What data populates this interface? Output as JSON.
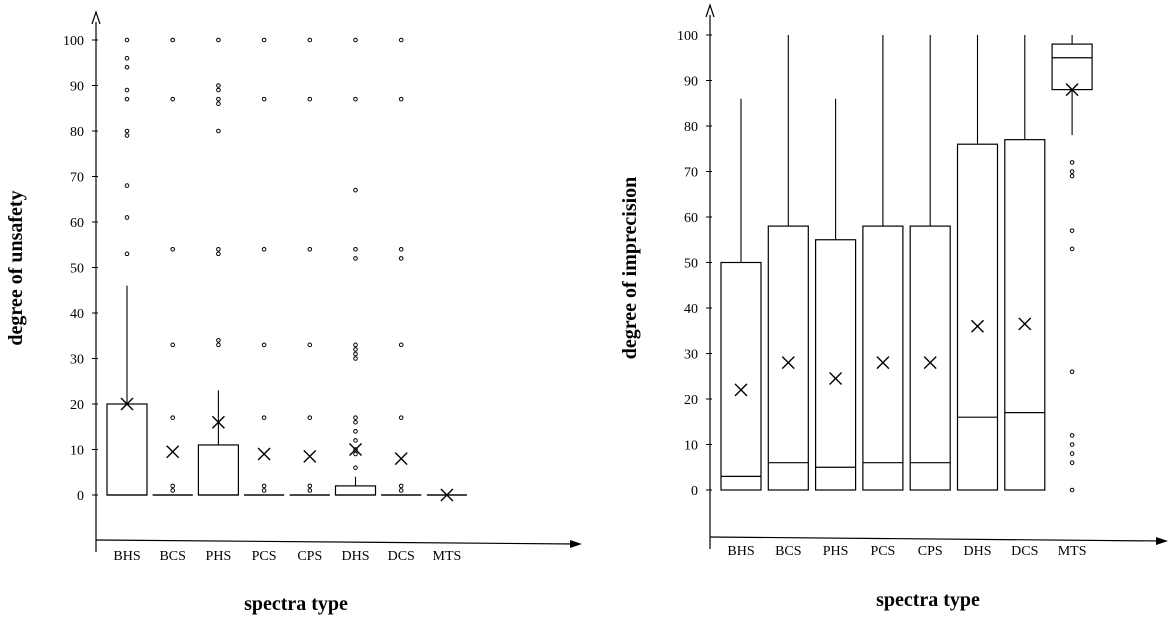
{
  "chart_data": [
    {
      "type": "box",
      "xlabel": "spectra type",
      "ylabel": "degree of unsafety",
      "yticks": [
        0,
        10,
        20,
        30,
        40,
        50,
        60,
        70,
        80,
        90,
        100
      ],
      "categories": [
        "BHS",
        "BCS",
        "PHS",
        "PCS",
        "CPS",
        "DHS",
        "DCS",
        "MTS"
      ],
      "boxes": [
        {
          "category": "BHS",
          "q1": 0,
          "median": 0,
          "q3": 20,
          "whisker_low": 0,
          "whisker_high": 46,
          "mean": 20,
          "outliers": [
            53,
            61,
            68,
            79,
            80,
            87,
            89,
            94,
            96,
            100
          ]
        },
        {
          "category": "BCS",
          "q1": 0,
          "median": 0,
          "q3": 0,
          "whisker_low": 0,
          "whisker_high": 0,
          "mean": 9.5,
          "outliers": [
            1,
            2,
            17,
            33,
            54,
            87,
            100
          ]
        },
        {
          "category": "PHS",
          "q1": 0,
          "median": 0,
          "q3": 11,
          "whisker_low": 0,
          "whisker_high": 23,
          "mean": 16,
          "outliers": [
            33,
            34,
            53,
            54,
            80,
            86,
            87,
            89,
            90,
            100
          ]
        },
        {
          "category": "PCS",
          "q1": 0,
          "median": 0,
          "q3": 0,
          "whisker_low": 0,
          "whisker_high": 0,
          "mean": 9,
          "outliers": [
            1,
            2,
            17,
            33,
            54,
            87,
            100
          ]
        },
        {
          "category": "CPS",
          "q1": 0,
          "median": 0,
          "q3": 0,
          "whisker_low": 0,
          "whisker_high": 0,
          "mean": 8.5,
          "outliers": [
            1,
            2,
            17,
            33,
            54,
            87,
            100
          ]
        },
        {
          "category": "DHS",
          "q1": 0,
          "median": 0,
          "q3": 2,
          "whisker_low": 0,
          "whisker_high": 4,
          "mean": 10,
          "outliers": [
            6,
            9,
            10,
            12,
            14,
            16,
            17,
            30,
            31,
            32,
            33,
            52,
            54,
            67,
            87,
            100
          ]
        },
        {
          "category": "DCS",
          "q1": 0,
          "median": 0,
          "q3": 0,
          "whisker_low": 0,
          "whisker_high": 0,
          "mean": 8,
          "outliers": [
            1,
            2,
            17,
            33,
            52,
            54,
            87,
            100
          ]
        },
        {
          "category": "MTS",
          "q1": 0,
          "median": 0,
          "q3": 0,
          "whisker_low": 0,
          "whisker_high": 0,
          "mean": 0,
          "outliers": []
        }
      ]
    },
    {
      "type": "box",
      "xlabel": "spectra type",
      "ylabel": "degree of imprecision",
      "yticks": [
        0,
        10,
        20,
        30,
        40,
        50,
        60,
        70,
        80,
        90,
        100
      ],
      "categories": [
        "BHS",
        "BCS",
        "PHS",
        "PCS",
        "CPS",
        "DHS",
        "DCS",
        "MTS"
      ],
      "boxes": [
        {
          "category": "BHS",
          "q1": 0,
          "median": 3,
          "q3": 50,
          "whisker_low": 0,
          "whisker_high": 86,
          "mean": 22,
          "outliers": []
        },
        {
          "category": "BCS",
          "q1": 0,
          "median": 6,
          "q3": 58,
          "whisker_low": 0,
          "whisker_high": 100,
          "mean": 28,
          "outliers": []
        },
        {
          "category": "PHS",
          "q1": 0,
          "median": 5,
          "q3": 55,
          "whisker_low": 0,
          "whisker_high": 86,
          "mean": 24.5,
          "outliers": []
        },
        {
          "category": "PCS",
          "q1": 0,
          "median": 6,
          "q3": 58,
          "whisker_low": 0,
          "whisker_high": 100,
          "mean": 28,
          "outliers": []
        },
        {
          "category": "CPS",
          "q1": 0,
          "median": 6,
          "q3": 58,
          "whisker_low": 0,
          "whisker_high": 100,
          "mean": 28,
          "outliers": []
        },
        {
          "category": "DHS",
          "q1": 0,
          "median": 16,
          "q3": 76,
          "whisker_low": 0,
          "whisker_high": 100,
          "mean": 36,
          "outliers": []
        },
        {
          "category": "DCS",
          "q1": 0,
          "median": 17,
          "q3": 77,
          "whisker_low": 0,
          "whisker_high": 100,
          "mean": 36.5,
          "outliers": []
        },
        {
          "category": "MTS",
          "q1": 88,
          "median": 95,
          "q3": 98,
          "whisker_low": 78,
          "whisker_high": 100,
          "mean": 88,
          "outliers": [
            0,
            6,
            8,
            10,
            12,
            26,
            53,
            57,
            69,
            70,
            72
          ]
        }
      ]
    }
  ]
}
